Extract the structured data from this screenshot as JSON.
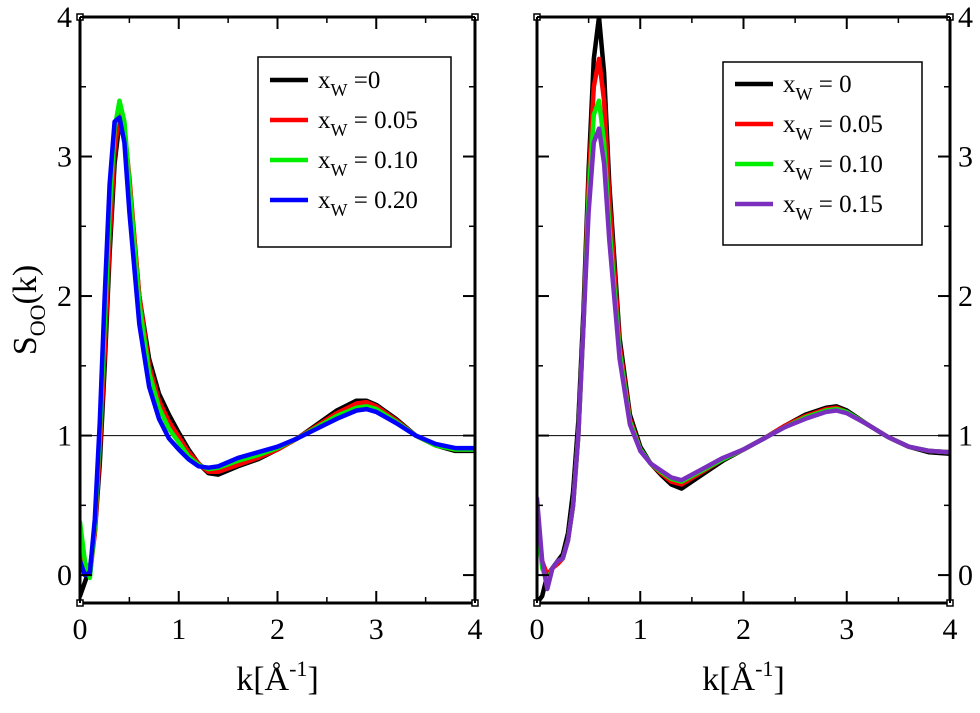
{
  "chart_data": [
    {
      "type": "line",
      "panel": "left",
      "ylabel": {
        "main": "S",
        "sub": "OO",
        "tail": "(k)"
      },
      "xlabel": {
        "main": "k[Å",
        "sup": "-1",
        "tail": "]"
      },
      "xlim": [
        0,
        4
      ],
      "ylim": [
        -0.2,
        4
      ],
      "xticks": [
        "0",
        "1",
        "2",
        "3",
        "4"
      ],
      "yticks": [
        "0",
        "1",
        "2",
        "3",
        "4"
      ],
      "ytick_side": "left",
      "reference_line": 1,
      "legend_position": "top-right",
      "series": [
        {
          "legend_label": "=0",
          "color": "#000000",
          "x": [
            0.0,
            0.05,
            0.1,
            0.15,
            0.2,
            0.25,
            0.3,
            0.35,
            0.4,
            0.45,
            0.5,
            0.6,
            0.7,
            0.8,
            0.9,
            1.0,
            1.1,
            1.2,
            1.3,
            1.4,
            1.6,
            1.8,
            2.0,
            2.2,
            2.4,
            2.6,
            2.8,
            2.9,
            3.0,
            3.2,
            3.4,
            3.6,
            3.8,
            4.0
          ],
          "y": [
            -0.15,
            -0.05,
            0.05,
            0.3,
            0.8,
            1.5,
            2.3,
            2.95,
            3.25,
            3.15,
            2.8,
            2.0,
            1.55,
            1.3,
            1.15,
            1.02,
            0.9,
            0.8,
            0.73,
            0.72,
            0.78,
            0.83,
            0.9,
            0.98,
            1.08,
            1.18,
            1.25,
            1.25,
            1.22,
            1.12,
            1.0,
            0.93,
            0.89,
            0.89
          ]
        },
        {
          "legend_label": "= 0.05",
          "color": "#ff0000",
          "x": [
            0.0,
            0.05,
            0.1,
            0.15,
            0.2,
            0.25,
            0.3,
            0.35,
            0.4,
            0.45,
            0.5,
            0.6,
            0.7,
            0.8,
            0.9,
            1.0,
            1.1,
            1.2,
            1.3,
            1.4,
            1.6,
            1.8,
            2.0,
            2.2,
            2.4,
            2.6,
            2.8,
            2.9,
            3.0,
            3.2,
            3.4,
            3.6,
            3.8,
            4.0
          ],
          "y": [
            0.2,
            0.05,
            0.0,
            0.3,
            0.9,
            1.6,
            2.4,
            3.05,
            3.3,
            3.2,
            2.85,
            2.0,
            1.5,
            1.25,
            1.1,
            0.99,
            0.88,
            0.8,
            0.74,
            0.74,
            0.79,
            0.84,
            0.9,
            0.98,
            1.07,
            1.16,
            1.23,
            1.24,
            1.21,
            1.11,
            1.0,
            0.93,
            0.9,
            0.9
          ]
        },
        {
          "legend_label": "= 0.10",
          "color": "#00ee00",
          "x": [
            0.0,
            0.05,
            0.1,
            0.15,
            0.2,
            0.25,
            0.3,
            0.35,
            0.4,
            0.45,
            0.5,
            0.6,
            0.7,
            0.8,
            0.9,
            1.0,
            1.1,
            1.2,
            1.3,
            1.4,
            1.6,
            1.8,
            2.0,
            2.2,
            2.4,
            2.6,
            2.8,
            2.9,
            3.0,
            3.2,
            3.4,
            3.6,
            3.8,
            4.0
          ],
          "y": [
            0.38,
            0.1,
            -0.02,
            0.35,
            1.0,
            1.8,
            2.6,
            3.2,
            3.4,
            3.25,
            2.8,
            1.95,
            1.45,
            1.2,
            1.05,
            0.95,
            0.85,
            0.79,
            0.76,
            0.77,
            0.82,
            0.86,
            0.91,
            0.98,
            1.06,
            1.14,
            1.2,
            1.21,
            1.19,
            1.1,
            1.0,
            0.93,
            0.9,
            0.9
          ]
        },
        {
          "legend_label": "= 0.20",
          "color": "#0000ff",
          "x": [
            0.0,
            0.05,
            0.1,
            0.15,
            0.2,
            0.25,
            0.3,
            0.35,
            0.4,
            0.45,
            0.5,
            0.6,
            0.7,
            0.8,
            0.9,
            1.0,
            1.1,
            1.2,
            1.3,
            1.4,
            1.6,
            1.8,
            2.0,
            2.2,
            2.4,
            2.6,
            2.8,
            2.9,
            3.0,
            3.2,
            3.4,
            3.6,
            3.8,
            4.0
          ],
          "y": [
            0.1,
            0.0,
            0.02,
            0.4,
            1.1,
            2.0,
            2.8,
            3.25,
            3.28,
            3.1,
            2.6,
            1.8,
            1.35,
            1.12,
            0.98,
            0.9,
            0.83,
            0.78,
            0.77,
            0.78,
            0.84,
            0.88,
            0.92,
            0.98,
            1.05,
            1.12,
            1.18,
            1.19,
            1.17,
            1.09,
            1.0,
            0.94,
            0.91,
            0.91
          ]
        }
      ]
    },
    {
      "type": "line",
      "panel": "right",
      "xlabel": {
        "main": "k[Å",
        "sup": "-1",
        "tail": "]"
      },
      "xlim": [
        0,
        4
      ],
      "ylim": [
        -0.2,
        4
      ],
      "xticks": [
        "0",
        "1",
        "2",
        "3",
        "4"
      ],
      "yticks": [
        "0",
        "1",
        "2",
        "3",
        "4"
      ],
      "ytick_side": "right",
      "reference_line": 1,
      "legend_position": "top-right",
      "series": [
        {
          "legend_label": "= 0",
          "color": "#000000",
          "x": [
            0.0,
            0.05,
            0.1,
            0.15,
            0.2,
            0.25,
            0.3,
            0.35,
            0.4,
            0.45,
            0.5,
            0.55,
            0.6,
            0.65,
            0.7,
            0.8,
            0.9,
            1.0,
            1.1,
            1.2,
            1.3,
            1.4,
            1.6,
            1.8,
            2.0,
            2.2,
            2.4,
            2.6,
            2.8,
            2.9,
            3.0,
            3.2,
            3.4,
            3.6,
            3.8,
            4.0
          ],
          "y": [
            -0.2,
            -0.15,
            0.0,
            0.05,
            0.1,
            0.15,
            0.3,
            0.6,
            1.1,
            1.9,
            2.9,
            3.7,
            4.0,
            3.6,
            2.8,
            1.7,
            1.15,
            0.92,
            0.8,
            0.72,
            0.65,
            0.62,
            0.72,
            0.82,
            0.9,
            0.98,
            1.07,
            1.15,
            1.2,
            1.21,
            1.18,
            1.08,
            0.99,
            0.92,
            0.88,
            0.87
          ]
        },
        {
          "legend_label": "= 0.05",
          "color": "#ff0000",
          "x": [
            0.0,
            0.05,
            0.1,
            0.15,
            0.2,
            0.25,
            0.3,
            0.35,
            0.4,
            0.45,
            0.5,
            0.55,
            0.6,
            0.65,
            0.7,
            0.8,
            0.9,
            1.0,
            1.1,
            1.2,
            1.3,
            1.4,
            1.6,
            1.8,
            2.0,
            2.2,
            2.4,
            2.6,
            2.8,
            2.9,
            3.0,
            3.2,
            3.4,
            3.6,
            3.8,
            4.0
          ],
          "y": [
            0.3,
            0.1,
            0.0,
            0.05,
            0.08,
            0.12,
            0.25,
            0.5,
            1.0,
            1.8,
            2.8,
            3.5,
            3.7,
            3.4,
            2.7,
            1.65,
            1.12,
            0.9,
            0.8,
            0.73,
            0.67,
            0.65,
            0.74,
            0.83,
            0.9,
            0.98,
            1.07,
            1.14,
            1.19,
            1.2,
            1.17,
            1.08,
            0.99,
            0.92,
            0.89,
            0.88
          ]
        },
        {
          "legend_label": "= 0.10",
          "color": "#00ee00",
          "x": [
            0.0,
            0.05,
            0.1,
            0.15,
            0.2,
            0.25,
            0.3,
            0.35,
            0.4,
            0.45,
            0.5,
            0.55,
            0.6,
            0.65,
            0.7,
            0.8,
            0.9,
            1.0,
            1.1,
            1.2,
            1.3,
            1.4,
            1.6,
            1.8,
            2.0,
            2.2,
            2.4,
            2.6,
            2.8,
            2.9,
            3.0,
            3.2,
            3.4,
            3.6,
            3.8,
            4.0
          ],
          "y": [
            0.4,
            0.05,
            -0.05,
            0.05,
            0.1,
            0.12,
            0.25,
            0.5,
            1.0,
            1.8,
            2.7,
            3.3,
            3.4,
            3.1,
            2.5,
            1.6,
            1.1,
            0.9,
            0.8,
            0.74,
            0.69,
            0.67,
            0.75,
            0.83,
            0.9,
            0.98,
            1.06,
            1.13,
            1.18,
            1.19,
            1.17,
            1.08,
            0.99,
            0.92,
            0.89,
            0.88
          ]
        },
        {
          "legend_label": "= 0.15",
          "color": "#7b2fbe",
          "x": [
            0.0,
            0.05,
            0.1,
            0.15,
            0.2,
            0.25,
            0.3,
            0.35,
            0.4,
            0.45,
            0.5,
            0.55,
            0.6,
            0.65,
            0.7,
            0.8,
            0.9,
            1.0,
            1.1,
            1.2,
            1.3,
            1.4,
            1.6,
            1.8,
            2.0,
            2.2,
            2.4,
            2.6,
            2.8,
            2.9,
            3.0,
            3.2,
            3.4,
            3.6,
            3.8,
            4.0
          ],
          "y": [
            0.55,
            0.1,
            -0.1,
            0.05,
            0.1,
            0.12,
            0.25,
            0.5,
            1.0,
            1.8,
            2.6,
            3.1,
            3.2,
            2.95,
            2.4,
            1.55,
            1.08,
            0.89,
            0.8,
            0.75,
            0.7,
            0.68,
            0.76,
            0.84,
            0.9,
            0.98,
            1.06,
            1.12,
            1.17,
            1.18,
            1.16,
            1.08,
            0.99,
            0.92,
            0.89,
            0.88
          ]
        }
      ]
    }
  ]
}
